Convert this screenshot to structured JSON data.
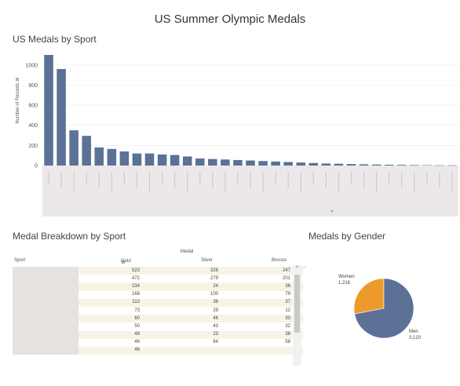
{
  "dashboard_title": "US Summer Olympic Medals",
  "bar_section": {
    "title": "US Medals by Sport",
    "ylabel": "Number of Records",
    "x_tick_glyph": "≠"
  },
  "table_section": {
    "title": "Medal Breakdown by Sport",
    "header_group": "Medal",
    "col_sport": "Sport",
    "col_gold": "Gold",
    "col_silver": "Silver",
    "col_bronze": "Bronze",
    "sort_glyph": "≣",
    "rows": [
      {
        "gold": "523",
        "silver": "326",
        "bronze": "247"
      },
      {
        "gold": "472",
        "silver": "279",
        "bronze": "201"
      },
      {
        "gold": "234",
        "silver": "24",
        "bronze": "36"
      },
      {
        "gold": "168",
        "silver": "100",
        "bronze": "79"
      },
      {
        "gold": "113",
        "silver": "36",
        "bronze": "37"
      },
      {
        "gold": "73",
        "silver": "29",
        "bronze": "12"
      },
      {
        "gold": "60",
        "silver": "46",
        "bronze": "33"
      },
      {
        "gold": "50",
        "silver": "43",
        "bronze": "32"
      },
      {
        "gold": "48",
        "silver": "23",
        "bronze": "38"
      },
      {
        "gold": "46",
        "silver": "64",
        "bronze": "58"
      },
      {
        "gold": "46",
        "silver": "",
        "bronze": ""
      }
    ]
  },
  "pie_section": {
    "title": "Medals by Gender",
    "women_label": "Women",
    "women_value": "1,216",
    "men_label": "Men",
    "men_value": "3,120"
  },
  "colors": {
    "bar": "#5b7196",
    "men": "#5b7196",
    "women": "#ec9b2b",
    "xaxis_bg": "#ece8ea"
  },
  "chart_data": [
    {
      "type": "bar",
      "title": "US Medals by Sport",
      "ylabel": "Number of Records",
      "ylim": [
        0,
        1100
      ],
      "yticks": [
        0,
        200,
        400,
        600,
        800,
        1000
      ],
      "grid": true,
      "values": [
        1100,
        960,
        350,
        295,
        180,
        165,
        140,
        120,
        120,
        110,
        105,
        90,
        70,
        65,
        60,
        55,
        50,
        45,
        40,
        35,
        30,
        25,
        20,
        18,
        15,
        12,
        10,
        8,
        7,
        5,
        4,
        3,
        2
      ]
    },
    {
      "type": "pie",
      "title": "Medals by Gender",
      "labels": [
        "Women",
        "Men"
      ],
      "values": [
        1216,
        3120
      ]
    }
  ]
}
